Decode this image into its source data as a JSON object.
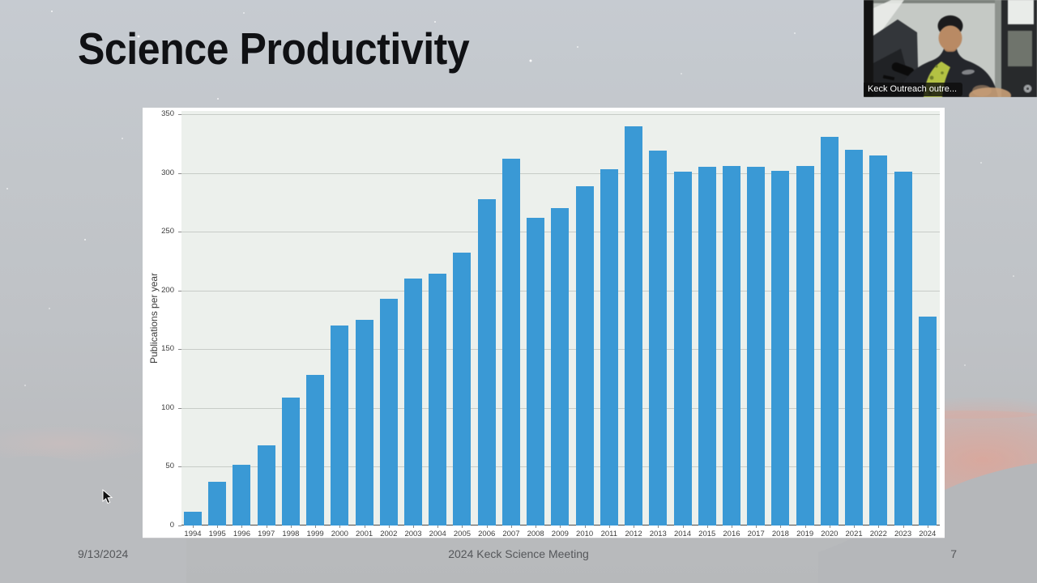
{
  "slide": {
    "title": "Science Productivity",
    "footer": {
      "date": "9/13/2024",
      "center": "2024 Keck Science Meeting",
      "page": "7"
    }
  },
  "chart_data": {
    "type": "bar",
    "title": "",
    "xlabel": "",
    "ylabel": "Publications per year",
    "categories": [
      "1994",
      "1995",
      "1996",
      "1997",
      "1998",
      "1999",
      "2000",
      "2001",
      "2002",
      "2003",
      "2004",
      "2005",
      "2006",
      "2007",
      "2008",
      "2009",
      "2010",
      "2011",
      "2012",
      "2013",
      "2014",
      "2015",
      "2016",
      "2017",
      "2018",
      "2019",
      "2020",
      "2021",
      "2022",
      "2023",
      "2024"
    ],
    "values": [
      12,
      37,
      52,
      68,
      109,
      128,
      170,
      175,
      193,
      210,
      214,
      232,
      278,
      312,
      262,
      270,
      289,
      303,
      340,
      319,
      301,
      305,
      306,
      305,
      302,
      306,
      331,
      320,
      315,
      301,
      178
    ],
    "ylim": [
      0,
      350
    ],
    "yticks": [
      0,
      50,
      100,
      150,
      200,
      250,
      300,
      350
    ],
    "grid": true,
    "legend": false,
    "bar_color": "#3a99d5",
    "plot_bg": "#ecf0ec"
  },
  "webcam": {
    "label": "Keck Outreach outre..."
  }
}
